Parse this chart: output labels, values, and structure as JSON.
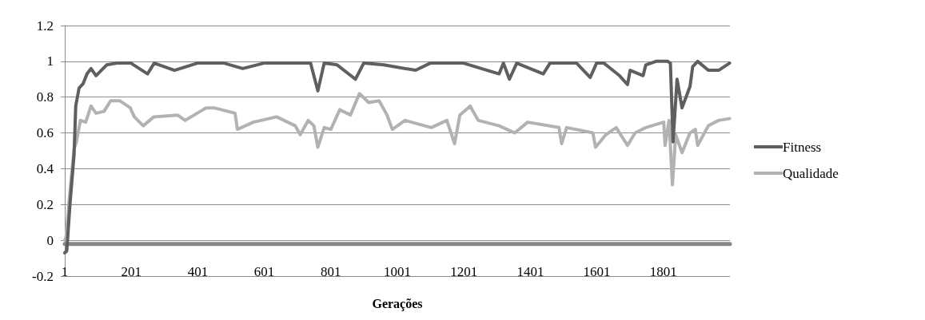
{
  "chart_data": {
    "type": "line",
    "xlabel": "Gerações",
    "xlim": [
      1,
      2001
    ],
    "xticks": [
      1,
      201,
      401,
      601,
      801,
      1001,
      1201,
      1401,
      1601,
      1801
    ],
    "ylim": [
      -0.2,
      1.2
    ],
    "yticks": [
      -0.2,
      0,
      0.2,
      0.4,
      0.6,
      0.8,
      1,
      1.2
    ],
    "grid": "y",
    "legend": "right",
    "marker": "none",
    "line_style": "solid",
    "series": [
      {
        "name": "Fitness",
        "color": "#5f5f5f",
        "x": [
          1,
          7,
          17,
          29,
          34,
          44,
          56,
          68,
          80,
          95,
          127,
          158,
          200,
          250,
          270,
          331,
          400,
          480,
          536,
          600,
          700,
          740,
          762,
          781,
          820,
          875,
          900,
          960,
          1056,
          1100,
          1200,
          1307,
          1320,
          1338,
          1360,
          1440,
          1460,
          1540,
          1581,
          1600,
          1622,
          1669,
          1693,
          1701,
          1740,
          1748,
          1779,
          1814,
          1822,
          1830,
          1842,
          1857,
          1881,
          1889,
          1904,
          1936,
          1967,
          2000
        ],
        "values": [
          -0.07,
          -0.06,
          0.21,
          0.48,
          0.75,
          0.85,
          0.875,
          0.93,
          0.96,
          0.92,
          0.98,
          0.99,
          0.99,
          0.93,
          0.99,
          0.95,
          0.99,
          0.99,
          0.96,
          0.99,
          0.99,
          0.99,
          0.835,
          0.99,
          0.98,
          0.9,
          0.99,
          0.98,
          0.95,
          0.99,
          0.99,
          0.93,
          0.99,
          0.9,
          0.99,
          0.93,
          0.99,
          0.99,
          0.91,
          0.99,
          0.99,
          0.92,
          0.87,
          0.95,
          0.92,
          0.98,
          1.0,
          1.0,
          0.99,
          0.55,
          0.9,
          0.74,
          0.86,
          0.97,
          1.0,
          0.95,
          0.95,
          0.99
        ]
      },
      {
        "name": "Qualidade",
        "color": "#b2b2b2",
        "x": [
          1,
          5,
          17,
          29,
          36,
          48,
          64,
          80,
          95,
          119,
          139,
          166,
          198,
          210,
          237,
          269,
          340,
          363,
          426,
          450,
          513,
          520,
          568,
          638,
          694,
          709,
          733,
          750,
          762,
          781,
          801,
          828,
          860,
          887,
          915,
          946,
          970,
          986,
          1024,
          1103,
          1150,
          1173,
          1189,
          1220,
          1244,
          1307,
          1354,
          1393,
          1487,
          1495,
          1510,
          1589,
          1597,
          1628,
          1659,
          1693,
          1716,
          1748,
          1802,
          1806,
          1818,
          1828,
          1838,
          1857,
          1881,
          1897,
          1904,
          1936,
          1967,
          2000
        ],
        "values": [
          0.0,
          0.02,
          0.28,
          0.51,
          0.55,
          0.67,
          0.66,
          0.75,
          0.71,
          0.72,
          0.78,
          0.78,
          0.74,
          0.69,
          0.64,
          0.69,
          0.7,
          0.67,
          0.74,
          0.74,
          0.71,
          0.62,
          0.66,
          0.69,
          0.64,
          0.59,
          0.67,
          0.64,
          0.52,
          0.63,
          0.62,
          0.73,
          0.7,
          0.82,
          0.77,
          0.78,
          0.7,
          0.62,
          0.67,
          0.63,
          0.67,
          0.54,
          0.7,
          0.75,
          0.67,
          0.64,
          0.6,
          0.66,
          0.63,
          0.54,
          0.63,
          0.6,
          0.52,
          0.59,
          0.63,
          0.53,
          0.6,
          0.63,
          0.66,
          0.53,
          0.67,
          0.31,
          0.59,
          0.49,
          0.6,
          0.62,
          0.53,
          0.64,
          0.67,
          0.68
        ]
      },
      {
        "color": "#878787",
        "x": [
          1,
          2001
        ],
        "values": [
          -0.02,
          -0.02
        ]
      }
    ]
  }
}
